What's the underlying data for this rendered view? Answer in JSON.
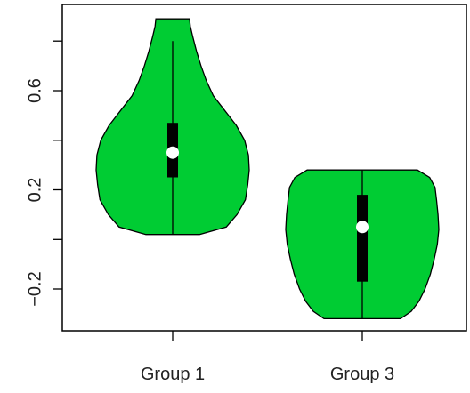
{
  "chart_data": {
    "type": "violin",
    "title": "",
    "xlabel": "",
    "ylabel": "",
    "categories": [
      "Group 1",
      "Group 3"
    ],
    "ylim": [
      -0.33,
      1.0
    ],
    "yticks": [
      -0.2,
      0.2,
      0.6
    ],
    "ytick_labels": [
      "-0.2",
      "0.2",
      "0.6"
    ],
    "grid": false,
    "violin_color": "#00cc33",
    "box_color": "#000000",
    "median_color": "#ffffff",
    "groups": [
      {
        "name": "Group 1",
        "min": 0.02,
        "q1": 0.25,
        "median": 0.35,
        "q3": 0.47,
        "max": 0.8,
        "violin_top": 0.89,
        "density": [
          [
            0.02,
            0.35
          ],
          [
            0.05,
            0.7
          ],
          [
            0.1,
            0.84
          ],
          [
            0.16,
            0.95
          ],
          [
            0.22,
            0.98
          ],
          [
            0.28,
            1.0
          ],
          [
            0.34,
            0.99
          ],
          [
            0.4,
            0.94
          ],
          [
            0.46,
            0.83
          ],
          [
            0.52,
            0.68
          ],
          [
            0.58,
            0.53
          ],
          [
            0.64,
            0.44
          ],
          [
            0.7,
            0.37
          ],
          [
            0.76,
            0.31
          ],
          [
            0.82,
            0.26
          ],
          [
            0.86,
            0.23
          ],
          [
            0.89,
            0.22
          ]
        ]
      },
      {
        "name": "Group 3",
        "min": -0.32,
        "q1": -0.17,
        "median": 0.05,
        "q3": 0.18,
        "max": 0.28,
        "violin_top": 0.28,
        "density": [
          [
            -0.32,
            0.5
          ],
          [
            -0.29,
            0.64
          ],
          [
            -0.25,
            0.74
          ],
          [
            -0.2,
            0.82
          ],
          [
            -0.14,
            0.89
          ],
          [
            -0.08,
            0.94
          ],
          [
            -0.02,
            0.98
          ],
          [
            0.04,
            1.0
          ],
          [
            0.1,
            0.99
          ],
          [
            0.16,
            0.97
          ],
          [
            0.21,
            0.95
          ],
          [
            0.25,
            0.88
          ],
          [
            0.28,
            0.72
          ]
        ]
      }
    ]
  }
}
